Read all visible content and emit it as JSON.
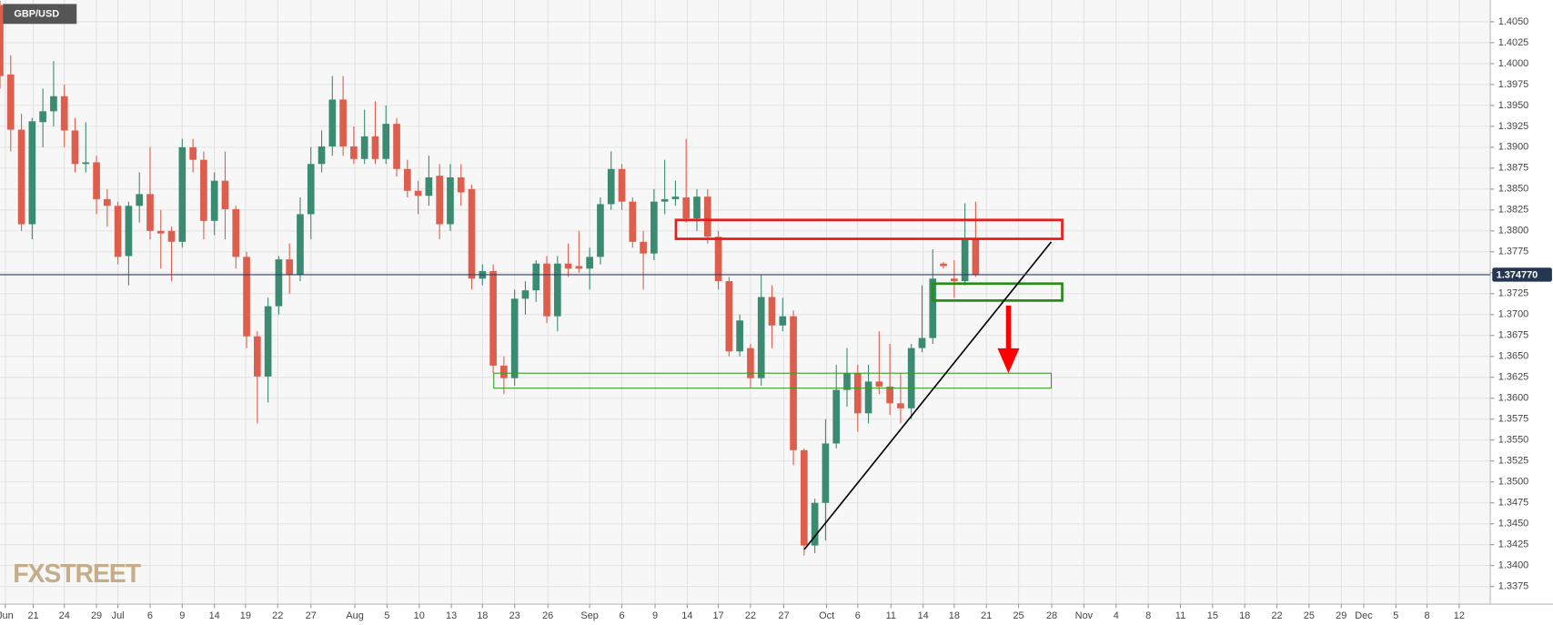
{
  "chart_data": {
    "type": "candlestick",
    "title": "GBP/USD",
    "watermark": "FXSTREET",
    "up_color": "#3b8a72",
    "down_color": "#dd5e4c",
    "grid": true,
    "x": [
      0,
      1,
      2,
      3,
      4,
      5,
      6,
      7,
      8,
      9,
      10,
      11,
      12,
      13,
      14,
      15,
      16,
      17,
      18,
      19,
      20,
      21,
      22,
      23,
      24,
      25,
      26,
      27,
      28,
      29,
      30,
      31,
      32,
      33,
      34,
      35,
      36,
      37,
      38,
      39,
      40,
      41,
      42,
      43,
      44,
      45,
      46,
      47,
      48,
      49,
      50,
      51,
      52,
      53,
      54,
      55,
      56,
      57,
      58,
      59,
      60,
      61,
      62,
      63,
      64,
      65,
      66,
      67,
      68,
      69,
      70,
      71,
      72,
      73,
      74,
      75,
      76,
      77,
      78,
      79,
      80,
      81,
      82,
      83,
      84,
      85,
      86,
      87,
      88,
      89,
      90,
      91
    ],
    "open": [
      1.407,
      1.3987,
      1.3921,
      1.3808,
      1.393,
      1.3943,
      1.3961,
      1.392,
      1.388,
      1.3882,
      1.3838,
      1.383,
      1.377,
      1.383,
      1.3844,
      1.38,
      1.38,
      1.3787,
      1.39,
      1.3885,
      1.3812,
      1.386,
      1.3826,
      1.3769,
      1.3674,
      1.3626,
      1.371,
      1.3766,
      1.3748,
      1.382,
      1.388,
      1.3901,
      1.3957,
      1.3901,
      1.3886,
      1.3913,
      1.3886,
      1.3928,
      1.3874,
      1.3848,
      1.3842,
      1.3866,
      1.3808,
      1.3864,
      1.385,
      1.3743,
      1.3752,
      1.3639,
      1.3624,
      1.3719,
      1.3729,
      1.3761,
      1.3698,
      1.3761,
      1.3758,
      1.3755,
      1.3769,
      1.3832,
      1.3874,
      1.3835,
      1.3787,
      1.3773,
      1.3835,
      1.3838,
      1.384,
      1.3815,
      1.3841,
      1.3793,
      1.374,
      1.3656,
      1.366,
      1.3624,
      1.3721,
      1.3687,
      1.3698,
      1.3538,
      1.3424,
      1.3475,
      1.3546,
      1.361,
      1.363,
      1.3582,
      1.362,
      1.3614,
      1.3594,
      1.3588,
      1.366,
      1.3672,
      1.3761,
      1.3743,
      1.374,
      1.379
    ],
    "high": [
      1.4075,
      1.401,
      1.394,
      1.3935,
      1.397,
      1.4003,
      1.3975,
      1.3935,
      1.393,
      1.389,
      1.385,
      1.3835,
      1.3835,
      1.387,
      1.39,
      1.3825,
      1.3805,
      1.391,
      1.391,
      1.3895,
      1.387,
      1.3895,
      1.383,
      1.3775,
      1.368,
      1.372,
      1.377,
      1.3785,
      1.384,
      1.39,
      1.392,
      1.3985,
      1.3985,
      1.3925,
      1.3945,
      1.3955,
      1.395,
      1.3935,
      1.3885,
      1.386,
      1.389,
      1.388,
      1.388,
      1.388,
      1.3855,
      1.376,
      1.376,
      1.365,
      1.373,
      1.374,
      1.3765,
      1.377,
      1.377,
      1.3785,
      1.38,
      1.378,
      1.384,
      1.3895,
      1.388,
      1.384,
      1.38,
      1.385,
      1.3885,
      1.386,
      1.391,
      1.385,
      1.385,
      1.38,
      1.3745,
      1.37,
      1.3665,
      1.3748,
      1.3735,
      1.372,
      1.3705,
      1.354,
      1.348,
      1.3575,
      1.364,
      1.366,
      1.364,
      1.364,
      1.368,
      1.3665,
      1.363,
      1.3665,
      1.3735,
      1.3778,
      1.3763,
      1.3765,
      1.3833,
      1.3835
    ],
    "low": [
      1.397,
      1.3895,
      1.38,
      1.379,
      1.39,
      1.3925,
      1.39,
      1.387,
      1.387,
      1.382,
      1.3805,
      1.376,
      1.3735,
      1.381,
      1.379,
      1.3755,
      1.374,
      1.378,
      1.387,
      1.379,
      1.3795,
      1.379,
      1.3755,
      1.366,
      1.357,
      1.3595,
      1.37,
      1.3725,
      1.374,
      1.379,
      1.387,
      1.389,
      1.389,
      1.388,
      1.388,
      1.388,
      1.388,
      1.3865,
      1.384,
      1.382,
      1.383,
      1.379,
      1.38,
      1.383,
      1.373,
      1.3735,
      1.363,
      1.3605,
      1.3615,
      1.37,
      1.3715,
      1.369,
      1.368,
      1.3745,
      1.375,
      1.373,
      1.376,
      1.3825,
      1.3825,
      1.378,
      1.373,
      1.3765,
      1.382,
      1.383,
      1.381,
      1.38,
      1.3785,
      1.373,
      1.365,
      1.365,
      1.3612,
      1.3615,
      1.366,
      1.368,
      1.352,
      1.3412,
      1.3415,
      1.343,
      1.354,
      1.359,
      1.356,
      1.357,
      1.3605,
      1.358,
      1.357,
      1.3575,
      1.3655,
      1.3665,
      1.3755,
      1.372,
      1.3735,
      1.3745
    ],
    "close": [
      1.3985,
      1.3921,
      1.3808,
      1.3931,
      1.3943,
      1.3961,
      1.392,
      1.388,
      1.3882,
      1.3838,
      1.383,
      1.3769,
      1.383,
      1.3844,
      1.38,
      1.3797,
      1.3787,
      1.39,
      1.3885,
      1.3812,
      1.386,
      1.3826,
      1.3769,
      1.3674,
      1.3626,
      1.371,
      1.3766,
      1.3748,
      1.382,
      1.388,
      1.3901,
      1.3957,
      1.3901,
      1.3886,
      1.3913,
      1.3886,
      1.3928,
      1.3874,
      1.3848,
      1.3842,
      1.3864,
      1.3808,
      1.3864,
      1.3846,
      1.3743,
      1.3752,
      1.3639,
      1.3624,
      1.3719,
      1.3729,
      1.3761,
      1.3698,
      1.3761,
      1.3755,
      1.3755,
      1.3769,
      1.3832,
      1.3874,
      1.3835,
      1.3787,
      1.3773,
      1.3835,
      1.3838,
      1.3841,
      1.3815,
      1.3841,
      1.3793,
      1.374,
      1.3656,
      1.3693,
      1.3624,
      1.3721,
      1.3687,
      1.3698,
      1.3538,
      1.3424,
      1.3475,
      1.3546,
      1.361,
      1.363,
      1.3582,
      1.362,
      1.3614,
      1.3594,
      1.3588,
      1.366,
      1.3672,
      1.3743,
      1.3758,
      1.374,
      1.379,
      1.3748
    ],
    "last_price": {
      "value": 1.37477,
      "label": "1.374770"
    },
    "xlim": [
      0,
      139
    ],
    "ylim": [
      1.3354,
      1.4076
    ],
    "xticks": [
      {
        "value": 0.5,
        "label": "Jun"
      },
      {
        "value": 3.1,
        "label": "21"
      },
      {
        "value": 6.0,
        "label": "24"
      },
      {
        "value": 9.0,
        "label": "29"
      },
      {
        "value": 11.0,
        "label": "Jul"
      },
      {
        "value": 14.0,
        "label": "6"
      },
      {
        "value": 17.0,
        "label": "9"
      },
      {
        "value": 20.0,
        "label": "14"
      },
      {
        "value": 22.9,
        "label": "19"
      },
      {
        "value": 25.9,
        "label": "22"
      },
      {
        "value": 29.0,
        "label": "27"
      },
      {
        "value": 33.1,
        "label": "Aug"
      },
      {
        "value": 36.1,
        "label": "5"
      },
      {
        "value": 39.1,
        "label": "10"
      },
      {
        "value": 42.1,
        "label": "13"
      },
      {
        "value": 45.0,
        "label": "18"
      },
      {
        "value": 48.0,
        "label": "23"
      },
      {
        "value": 51.1,
        "label": "26"
      },
      {
        "value": 55.0,
        "label": "Sep"
      },
      {
        "value": 58.0,
        "label": "6"
      },
      {
        "value": 61.1,
        "label": "9"
      },
      {
        "value": 64.1,
        "label": "14"
      },
      {
        "value": 67.0,
        "label": "17"
      },
      {
        "value": 70.0,
        "label": "22"
      },
      {
        "value": 73.1,
        "label": "27"
      },
      {
        "value": 77.1,
        "label": "Oct"
      },
      {
        "value": 80.0,
        "label": "6"
      },
      {
        "value": 83.1,
        "label": "11"
      },
      {
        "value": 86.1,
        "label": "14"
      },
      {
        "value": 89.0,
        "label": "18"
      },
      {
        "value": 92.0,
        "label": "21"
      },
      {
        "value": 95.0,
        "label": "25"
      },
      {
        "value": 98.1,
        "label": "28"
      },
      {
        "value": 101.1,
        "label": "Nov"
      },
      {
        "value": 104.1,
        "label": "4"
      },
      {
        "value": 107.1,
        "label": "8"
      },
      {
        "value": 110.1,
        "label": "11"
      },
      {
        "value": 113.1,
        "label": "15"
      },
      {
        "value": 116.1,
        "label": "18"
      },
      {
        "value": 119.1,
        "label": "22"
      },
      {
        "value": 122.1,
        "label": "25"
      },
      {
        "value": 125.1,
        "label": "29"
      },
      {
        "value": 127.2,
        "label": "Dec"
      },
      {
        "value": 130.2,
        "label": "5"
      },
      {
        "value": 133.1,
        "label": "8"
      },
      {
        "value": 136.1,
        "label": "12"
      }
    ],
    "yticks": [
      {
        "value": 1.3375,
        "label": "1.3375"
      },
      {
        "value": 1.34,
        "label": "1.3400"
      },
      {
        "value": 1.3425,
        "label": "1.3425"
      },
      {
        "value": 1.345,
        "label": "1.3450"
      },
      {
        "value": 1.3475,
        "label": "1.3475"
      },
      {
        "value": 1.35,
        "label": "1.3500"
      },
      {
        "value": 1.3525,
        "label": "1.3525"
      },
      {
        "value": 1.355,
        "label": "1.3550"
      },
      {
        "value": 1.3575,
        "label": "1.3575"
      },
      {
        "value": 1.36,
        "label": "1.3600"
      },
      {
        "value": 1.3625,
        "label": "1.3625"
      },
      {
        "value": 1.365,
        "label": "1.3650"
      },
      {
        "value": 1.3675,
        "label": "1.3675"
      },
      {
        "value": 1.37,
        "label": "1.3700"
      },
      {
        "value": 1.3725,
        "label": "1.3725"
      },
      {
        "value": 1.375,
        "label": "1.3750"
      },
      {
        "value": 1.3775,
        "label": "1.3775"
      },
      {
        "value": 1.38,
        "label": "1.3800"
      },
      {
        "value": 1.3825,
        "label": "1.3825"
      },
      {
        "value": 1.385,
        "label": "1.3850"
      },
      {
        "value": 1.3875,
        "label": "1.3875"
      },
      {
        "value": 1.39,
        "label": "1.3900"
      },
      {
        "value": 1.3925,
        "label": "1.3925"
      },
      {
        "value": 1.395,
        "label": "1.3950"
      },
      {
        "value": 1.3975,
        "label": "1.3975"
      },
      {
        "value": 1.4,
        "label": "1.4000"
      },
      {
        "value": 1.4025,
        "label": "1.4025"
      },
      {
        "value": 1.405,
        "label": "1.4050"
      }
    ]
  }
}
